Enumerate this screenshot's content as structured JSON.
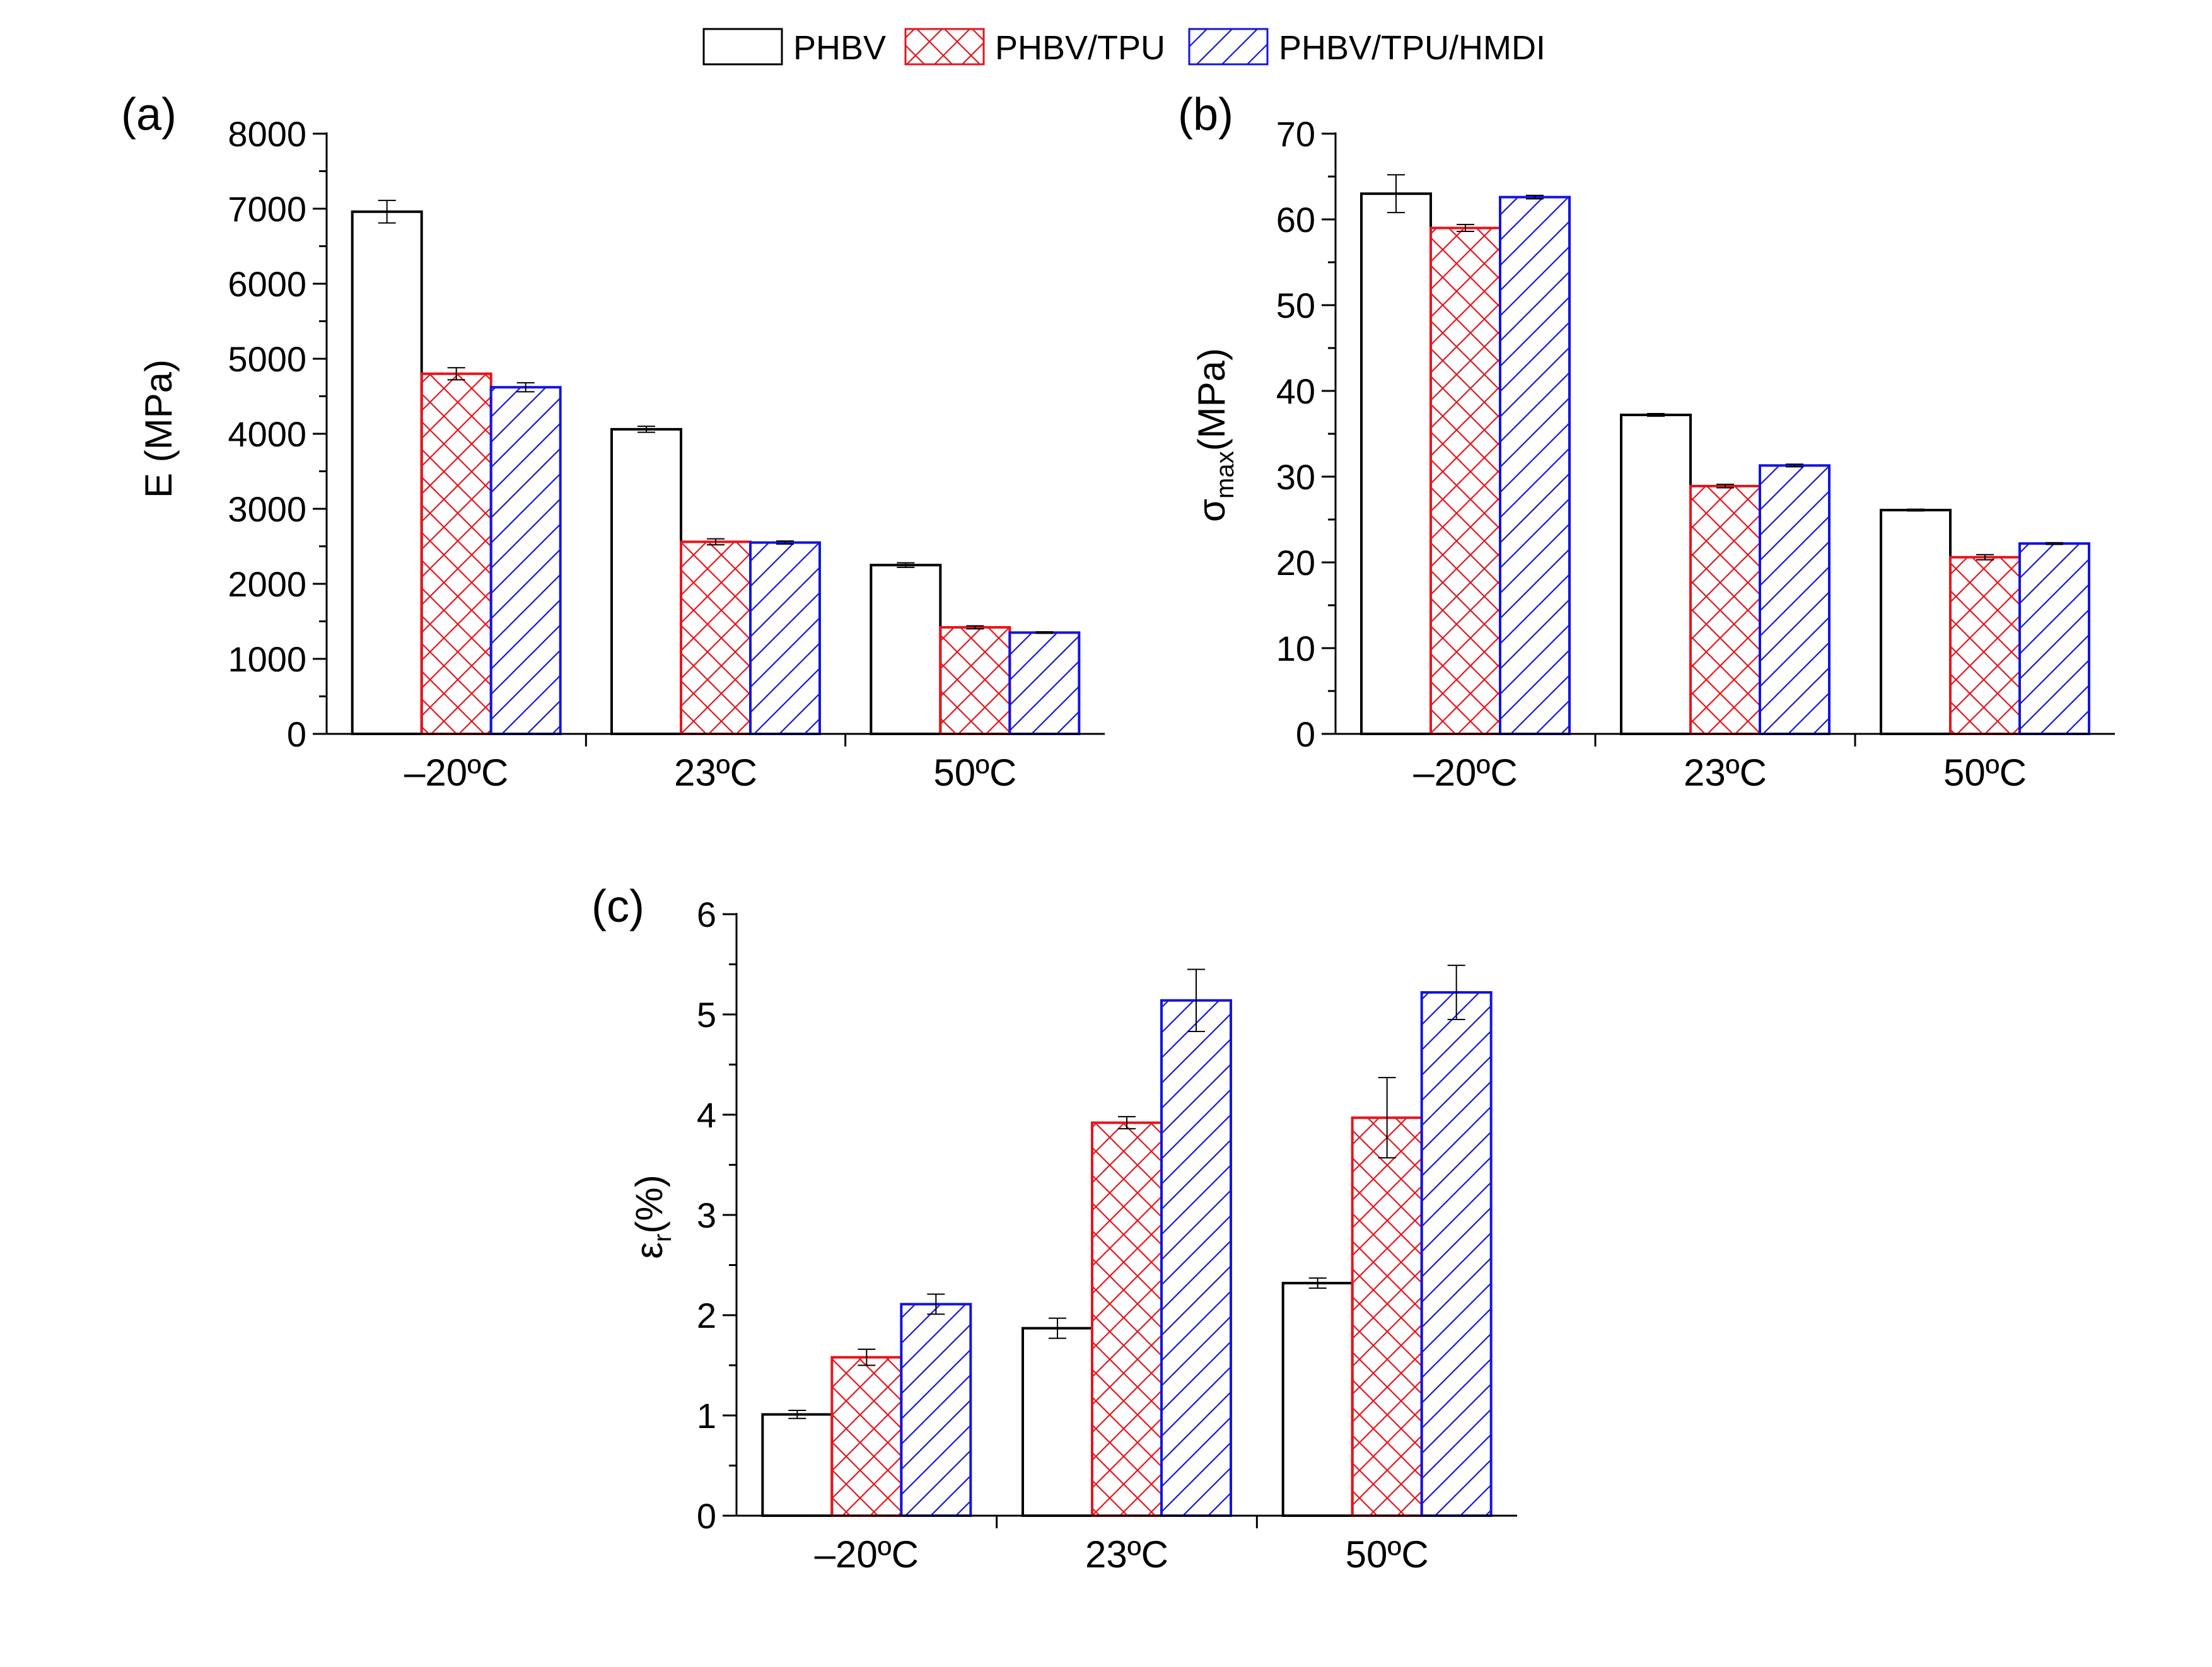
{
  "legend": {
    "entries": [
      {
        "name": "PHBV",
        "color": "#000000",
        "pattern": "none"
      },
      {
        "name": "PHBV/TPU",
        "color": "#e8141c",
        "pattern": "crosshatch"
      },
      {
        "name": "PHBV/TPU/HMDI",
        "color": "#1414e0",
        "pattern": "diagonal"
      }
    ]
  },
  "chart_data": [
    {
      "type": "bar",
      "panel_label": "(a)",
      "ylabel": "E (MPa)",
      "ylabel_sub": "",
      "ylabel_rest": "",
      "categories": [
        "–20ºC",
        "23ºC",
        "50ºC"
      ],
      "ylim": [
        0,
        8000
      ],
      "yticks": [
        0,
        1000,
        2000,
        3000,
        4000,
        5000,
        6000,
        7000,
        8000
      ],
      "series": [
        {
          "name": "PHBV",
          "values": [
            6960,
            4060,
            2250
          ],
          "errors": [
            150,
            40,
            30
          ]
        },
        {
          "name": "PHBV/TPU",
          "values": [
            4800,
            2560,
            1420
          ],
          "errors": [
            80,
            40,
            20
          ]
        },
        {
          "name": "PHBV/TPU/HMDI",
          "values": [
            4620,
            2550,
            1350
          ],
          "errors": [
            60,
            20,
            10
          ]
        }
      ]
    },
    {
      "type": "bar",
      "panel_label": "(b)",
      "ylabel": "σ",
      "ylabel_sub": "max",
      "ylabel_rest": "(MPa)",
      "categories": [
        "–20ºC",
        "23ºC",
        "50ºC"
      ],
      "ylim": [
        0,
        70
      ],
      "yticks": [
        0,
        10,
        20,
        30,
        40,
        50,
        60,
        70
      ],
      "series": [
        {
          "name": "PHBV",
          "values": [
            63.0,
            37.2,
            26.1
          ],
          "errors": [
            2.2,
            0.15,
            0.1
          ]
        },
        {
          "name": "PHBV/TPU",
          "values": [
            59.0,
            28.9,
            20.6
          ],
          "errors": [
            0.4,
            0.2,
            0.3
          ]
        },
        {
          "name": "PHBV/TPU/HMDI",
          "values": [
            62.6,
            31.3,
            22.2
          ],
          "errors": [
            0.2,
            0.15,
            0.1
          ]
        }
      ]
    },
    {
      "type": "bar",
      "panel_label": "(c)",
      "ylabel": "ε",
      "ylabel_sub": "r",
      "ylabel_rest": "(%)",
      "categories": [
        "–20ºC",
        "23ºC",
        "50ºC"
      ],
      "ylim": [
        0,
        6
      ],
      "yticks": [
        0,
        1,
        2,
        3,
        4,
        5,
        6
      ],
      "series": [
        {
          "name": "PHBV",
          "values": [
            1.01,
            1.87,
            2.32
          ],
          "errors": [
            0.04,
            0.1,
            0.05
          ]
        },
        {
          "name": "PHBV/TPU",
          "values": [
            1.58,
            3.92,
            3.97
          ],
          "errors": [
            0.08,
            0.06,
            0.4
          ]
        },
        {
          "name": "PHBV/TPU/HMDI",
          "values": [
            2.11,
            5.14,
            5.22
          ],
          "errors": [
            0.1,
            0.31,
            0.27
          ]
        }
      ]
    }
  ]
}
